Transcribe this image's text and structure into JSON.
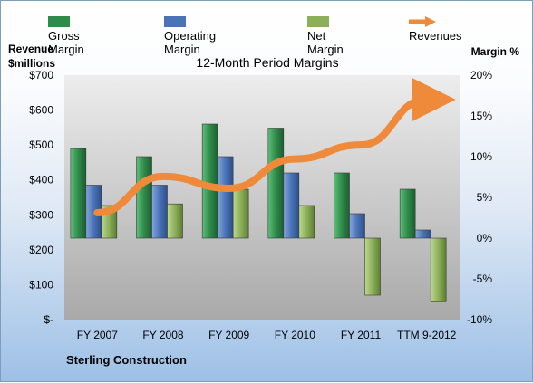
{
  "legend": {
    "gross": "Gross Margin",
    "operating": "Operating Margin",
    "net": "Net Margin",
    "revenues": "Revenues"
  },
  "axis": {
    "left_title_line1": "Revenue",
    "left_title_line2": "$millions",
    "right_title": "Margin %"
  },
  "title": "12-Month Period Margins",
  "company": "Sterling Construction",
  "colors": {
    "gross": "#2e8b4a",
    "operating": "#4a73b8",
    "net": "#8cb05a",
    "revenues": "#ee8a3a"
  },
  "chart_data": {
    "type": "bar",
    "title": "12-Month Period Margins",
    "categories": [
      "FY 2007",
      "FY 2008",
      "FY 2009",
      "FY 2010",
      "FY 2011",
      "TTM 9-2012"
    ],
    "series": [
      {
        "name": "Gross Margin",
        "axis": "right",
        "values": [
          11,
          10,
          14,
          13.5,
          8,
          6
        ]
      },
      {
        "name": "Operating Margin",
        "axis": "right",
        "values": [
          6.5,
          6.5,
          10,
          8,
          3,
          1
        ]
      },
      {
        "name": "Net Margin",
        "axis": "right",
        "values": [
          4,
          4.2,
          6,
          4,
          -7,
          -7.7
        ]
      },
      {
        "name": "Revenues",
        "axis": "left",
        "type": "line",
        "values": [
          306,
          410,
          376,
          460,
          500,
          630
        ]
      }
    ],
    "y_left": {
      "ylim": [
        0,
        700
      ],
      "ticks": [
        "$-",
        "$100",
        "$200",
        "$300",
        "$400",
        "$500",
        "$600",
        "$700"
      ]
    },
    "y_right": {
      "ylim": [
        -10,
        20
      ],
      "ticks": [
        "-10%",
        "-5%",
        "0%",
        "5%",
        "10%",
        "15%",
        "20%"
      ]
    },
    "legend_position": "top",
    "grid": false
  }
}
